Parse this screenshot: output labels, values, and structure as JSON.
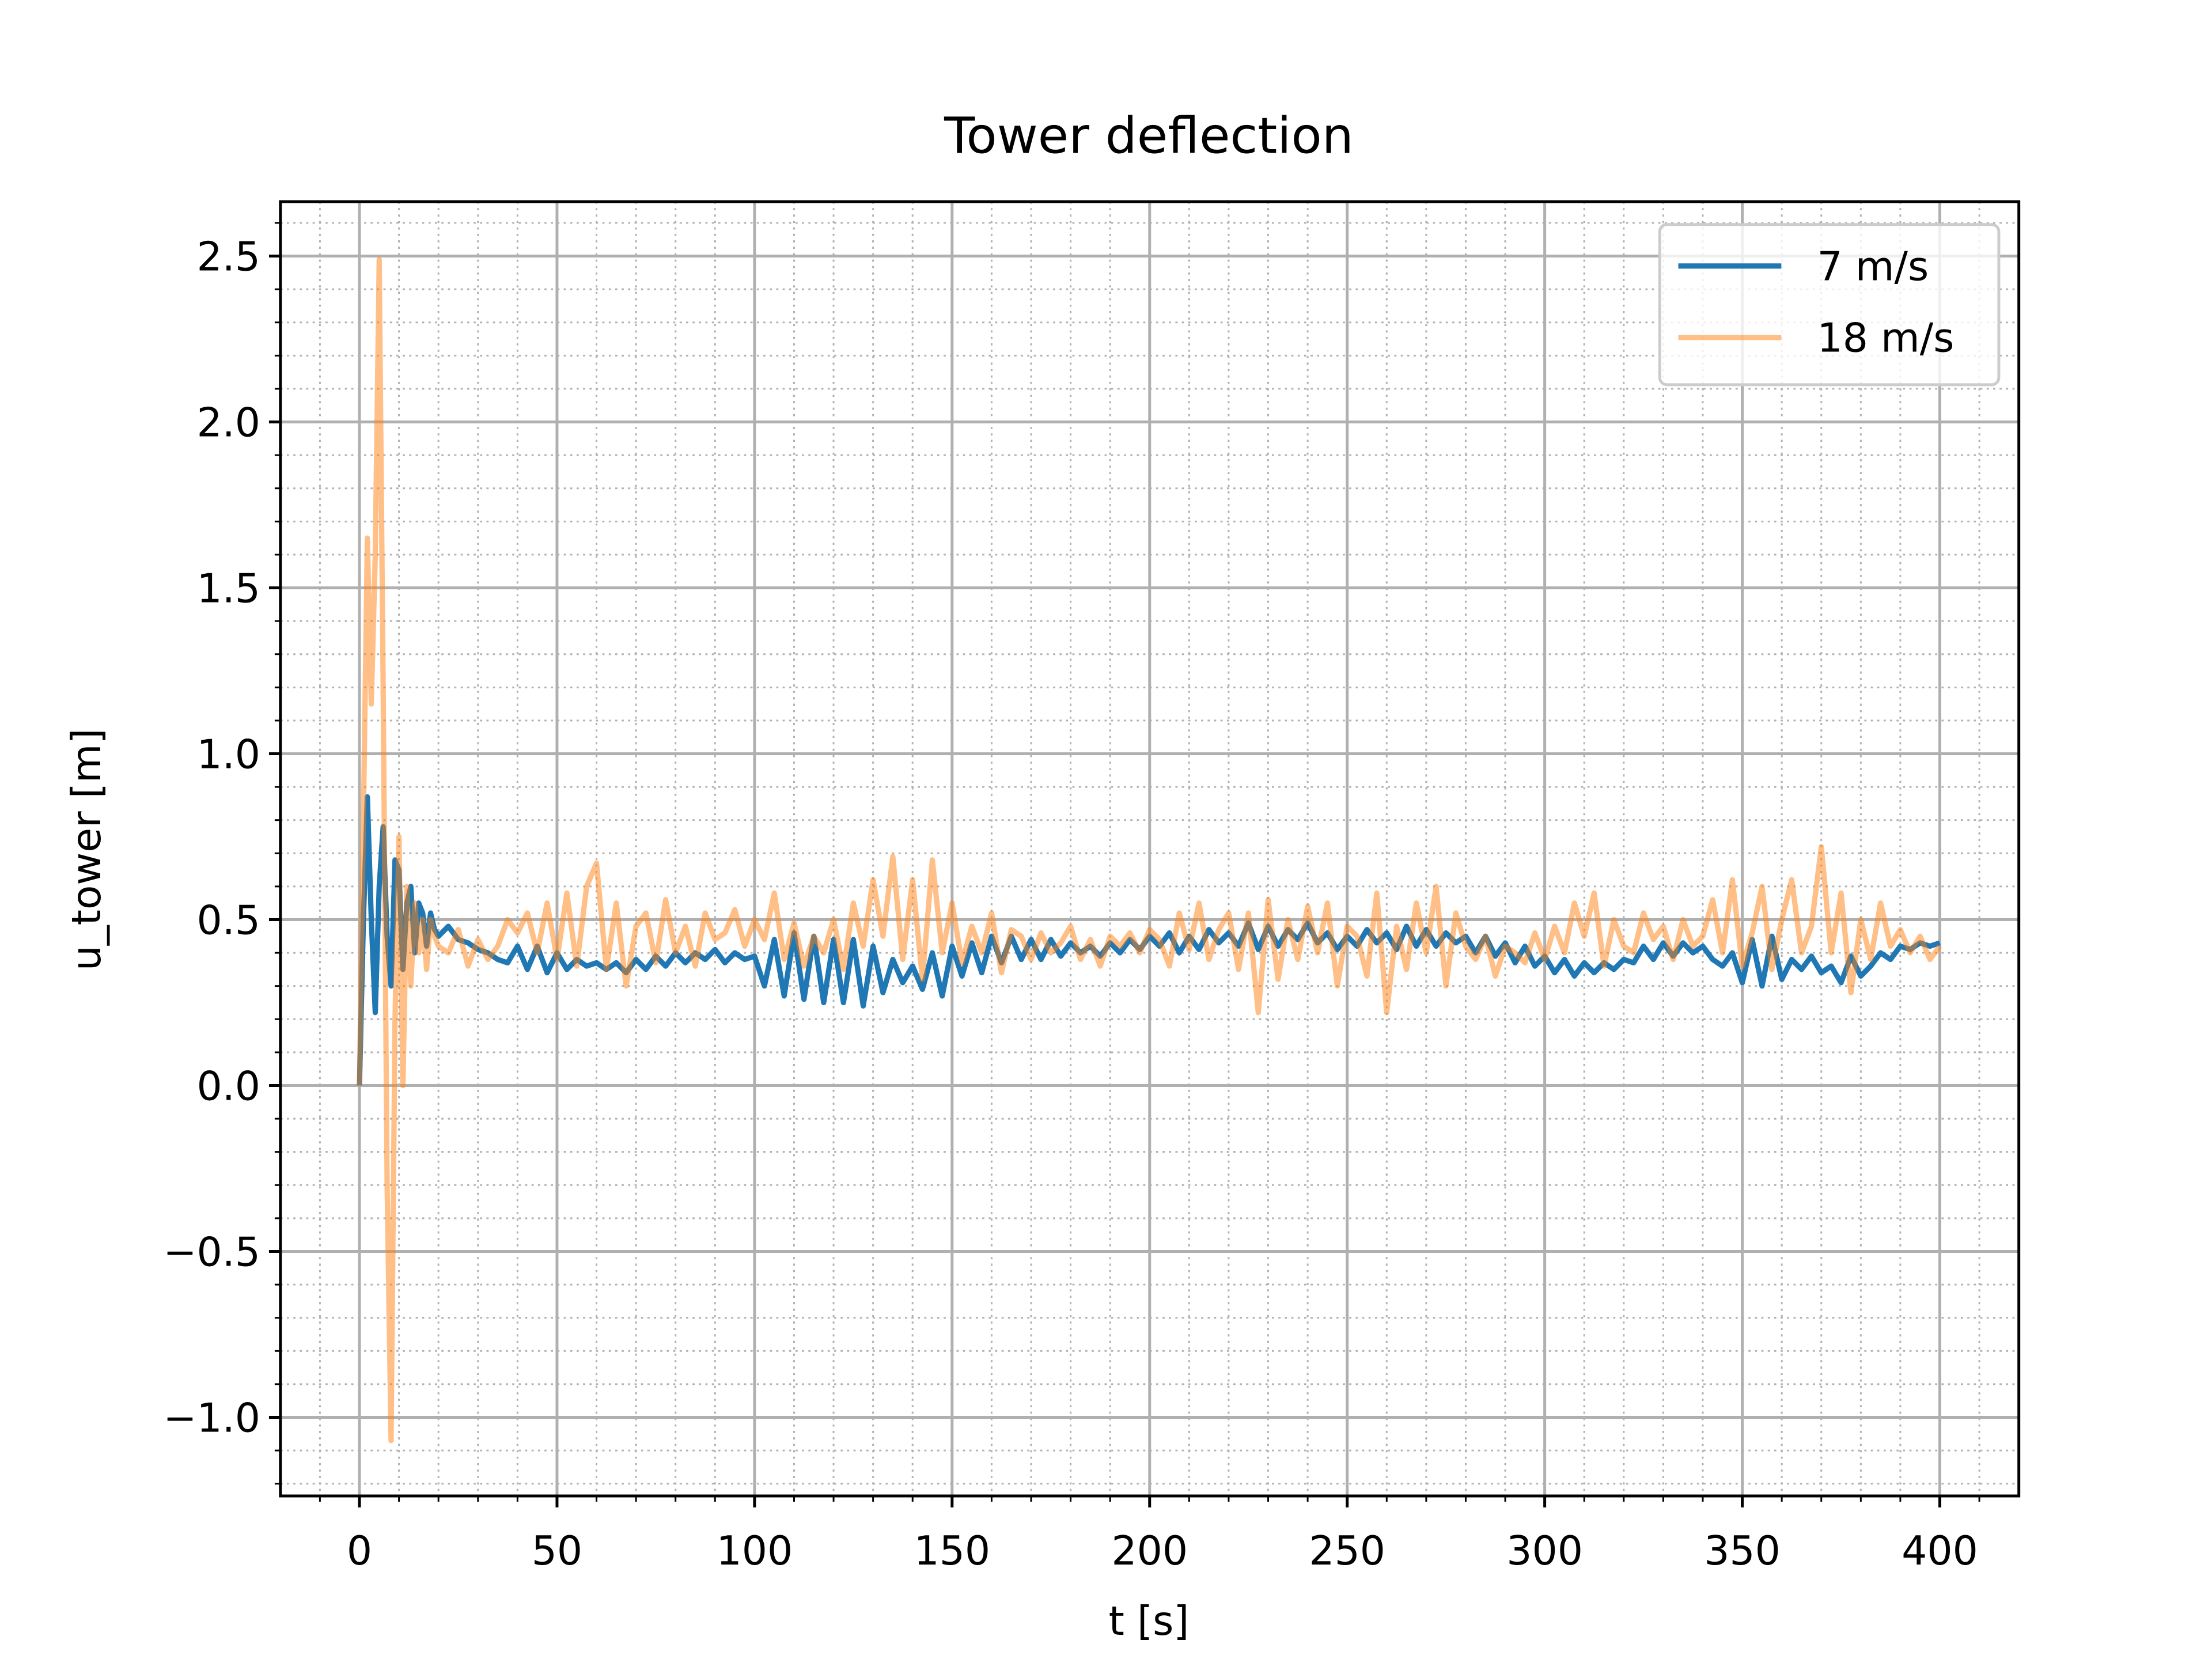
{
  "chart_data": {
    "type": "line",
    "title": "Tower deflection",
    "x_label": "t [s]",
    "y_label": "u_tower [m]",
    "x": [
      0,
      1,
      2,
      3,
      4,
      5,
      6,
      7,
      8,
      9,
      10,
      11,
      12,
      13,
      14,
      15,
      16,
      17,
      18,
      19,
      20,
      22.5,
      25,
      27.5,
      30,
      32.5,
      35,
      37.5,
      40,
      42.5,
      45,
      47.5,
      50,
      52.5,
      55,
      57.5,
      60,
      62.5,
      65,
      67.5,
      70,
      72.5,
      75,
      77.5,
      80,
      82.5,
      85,
      87.5,
      90,
      92.5,
      95,
      97.5,
      100,
      102.5,
      105,
      107.5,
      110,
      112.5,
      115,
      117.5,
      120,
      122.5,
      125,
      127.5,
      130,
      132.5,
      135,
      137.5,
      140,
      142.5,
      145,
      147.5,
      150,
      152.5,
      155,
      157.5,
      160,
      162.5,
      165,
      167.5,
      170,
      172.5,
      175,
      177.5,
      180,
      182.5,
      185,
      187.5,
      190,
      192.5,
      195,
      197.5,
      200,
      202.5,
      205,
      207.5,
      210,
      212.5,
      215,
      217.5,
      220,
      222.5,
      225,
      227.5,
      230,
      232.5,
      235,
      237.5,
      240,
      242.5,
      245,
      247.5,
      250,
      252.5,
      255,
      257.5,
      260,
      262.5,
      265,
      267.5,
      270,
      272.5,
      275,
      277.5,
      280,
      282.5,
      285,
      287.5,
      290,
      292.5,
      295,
      297.5,
      300,
      302.5,
      305,
      307.5,
      310,
      312.5,
      315,
      317.5,
      320,
      322.5,
      325,
      327.5,
      330,
      332.5,
      335,
      337.5,
      340,
      342.5,
      345,
      347.5,
      350,
      352.5,
      355,
      357.5,
      360,
      362.5,
      365,
      367.5,
      370,
      372.5,
      375,
      377.5,
      380,
      382.5,
      385,
      387.5,
      390,
      392.5,
      395,
      397.5,
      400
    ],
    "series": [
      {
        "name": "7 m/s",
        "color": "#1f77b4",
        "alpha": 1,
        "values": [
          0,
          0.5,
          0.87,
          0.5,
          0.22,
          0.6,
          0.78,
          0.45,
          0.3,
          0.68,
          0.65,
          0.35,
          0.55,
          0.6,
          0.4,
          0.55,
          0.52,
          0.42,
          0.52,
          0.47,
          0.45,
          0.48,
          0.44,
          0.43,
          0.41,
          0.4,
          0.38,
          0.37,
          0.42,
          0.35,
          0.42,
          0.34,
          0.4,
          0.35,
          0.38,
          0.36,
          0.37,
          0.35,
          0.37,
          0.34,
          0.38,
          0.35,
          0.39,
          0.36,
          0.4,
          0.37,
          0.4,
          0.38,
          0.41,
          0.37,
          0.4,
          0.38,
          0.39,
          0.3,
          0.44,
          0.27,
          0.46,
          0.26,
          0.45,
          0.25,
          0.44,
          0.25,
          0.44,
          0.24,
          0.42,
          0.28,
          0.38,
          0.31,
          0.36,
          0.29,
          0.4,
          0.27,
          0.42,
          0.33,
          0.43,
          0.34,
          0.45,
          0.37,
          0.45,
          0.38,
          0.44,
          0.38,
          0.44,
          0.39,
          0.43,
          0.4,
          0.42,
          0.39,
          0.43,
          0.4,
          0.44,
          0.41,
          0.45,
          0.42,
          0.46,
          0.4,
          0.45,
          0.41,
          0.47,
          0.43,
          0.46,
          0.42,
          0.49,
          0.41,
          0.48,
          0.42,
          0.47,
          0.44,
          0.49,
          0.43,
          0.46,
          0.41,
          0.45,
          0.42,
          0.47,
          0.43,
          0.46,
          0.41,
          0.48,
          0.42,
          0.47,
          0.42,
          0.46,
          0.43,
          0.45,
          0.4,
          0.45,
          0.39,
          0.43,
          0.37,
          0.42,
          0.36,
          0.39,
          0.34,
          0.38,
          0.33,
          0.37,
          0.34,
          0.37,
          0.35,
          0.38,
          0.37,
          0.42,
          0.38,
          0.43,
          0.39,
          0.43,
          0.4,
          0.42,
          0.38,
          0.36,
          0.4,
          0.31,
          0.44,
          0.3,
          0.45,
          0.32,
          0.38,
          0.35,
          0.39,
          0.34,
          0.36,
          0.31,
          0.39,
          0.33,
          0.36,
          0.4,
          0.38,
          0.42,
          0.41,
          0.43,
          0.42,
          0.43
        ]
      },
      {
        "name": "18 m/s",
        "color": "#ff7f0e",
        "alpha": 0.5,
        "values": [
          0,
          0.8,
          1.65,
          1.15,
          1.6,
          2.49,
          1.2,
          -0.3,
          -1.07,
          0.2,
          0.75,
          0.0,
          0.6,
          0.3,
          0.55,
          0.4,
          0.5,
          0.35,
          0.5,
          0.45,
          0.42,
          0.4,
          0.47,
          0.36,
          0.44,
          0.38,
          0.42,
          0.5,
          0.46,
          0.52,
          0.4,
          0.55,
          0.38,
          0.58,
          0.36,
          0.6,
          0.67,
          0.35,
          0.55,
          0.3,
          0.48,
          0.52,
          0.37,
          0.56,
          0.4,
          0.48,
          0.36,
          0.52,
          0.44,
          0.46,
          0.53,
          0.42,
          0.5,
          0.44,
          0.58,
          0.38,
          0.49,
          0.36,
          0.45,
          0.4,
          0.5,
          0.35,
          0.55,
          0.42,
          0.62,
          0.45,
          0.69,
          0.38,
          0.62,
          0.32,
          0.68,
          0.4,
          0.55,
          0.37,
          0.48,
          0.4,
          0.52,
          0.34,
          0.47,
          0.45,
          0.38,
          0.46,
          0.4,
          0.43,
          0.48,
          0.38,
          0.44,
          0.36,
          0.45,
          0.42,
          0.46,
          0.4,
          0.47,
          0.44,
          0.36,
          0.52,
          0.41,
          0.55,
          0.38,
          0.47,
          0.52,
          0.35,
          0.52,
          0.22,
          0.56,
          0.32,
          0.5,
          0.38,
          0.54,
          0.4,
          0.55,
          0.3,
          0.48,
          0.45,
          0.33,
          0.58,
          0.22,
          0.48,
          0.35,
          0.55,
          0.4,
          0.6,
          0.3,
          0.52,
          0.42,
          0.38,
          0.45,
          0.33,
          0.42,
          0.4,
          0.37,
          0.46,
          0.38,
          0.48,
          0.4,
          0.55,
          0.45,
          0.58,
          0.36,
          0.5,
          0.42,
          0.4,
          0.52,
          0.44,
          0.48,
          0.38,
          0.5,
          0.42,
          0.45,
          0.56,
          0.4,
          0.62,
          0.36,
          0.46,
          0.6,
          0.35,
          0.5,
          0.62,
          0.4,
          0.48,
          0.72,
          0.4,
          0.58,
          0.28,
          0.5,
          0.38,
          0.55,
          0.42,
          0.47,
          0.4,
          0.45,
          0.38,
          0.42
        ]
      }
    ],
    "xlim": [
      -20,
      420
    ],
    "ylim": [
      -1.237,
      2.664
    ],
    "xticks": [
      0,
      50,
      100,
      150,
      200,
      250,
      300,
      350,
      400
    ],
    "yticks": [
      {
        "value": -1.0,
        "label": "−1.0"
      },
      {
        "value": -0.5,
        "label": "−0.5"
      },
      {
        "value": 0,
        "label": "0.0"
      },
      0.5,
      {
        "value": 1.0,
        "label": "1.0"
      },
      1.5,
      {
        "value": 2.0,
        "label": "2.0"
      },
      2.5
    ],
    "xticks_minor": [
      -10,
      10,
      20,
      30,
      40,
      60,
      70,
      80,
      90,
      110,
      120,
      130,
      140,
      160,
      170,
      180,
      190,
      210,
      220,
      230,
      240,
      260,
      270,
      280,
      290,
      310,
      320,
      330,
      340,
      360,
      370,
      380,
      390,
      410
    ],
    "yticks_minor": [
      -1.2,
      -1.1,
      -0.9,
      -0.8,
      -0.7,
      -0.6,
      -0.4,
      -0.3,
      -0.2,
      -0.1,
      0.1,
      0.2,
      0.3,
      0.4,
      0.6,
      0.7,
      0.8,
      0.9,
      1.1,
      1.2,
      1.3,
      1.4,
      1.6,
      1.7,
      1.8,
      1.9,
      2.1,
      2.2,
      2.3,
      2.4,
      2.6
    ],
    "grid": true,
    "minor_grid": true,
    "legend": "upper right"
  }
}
